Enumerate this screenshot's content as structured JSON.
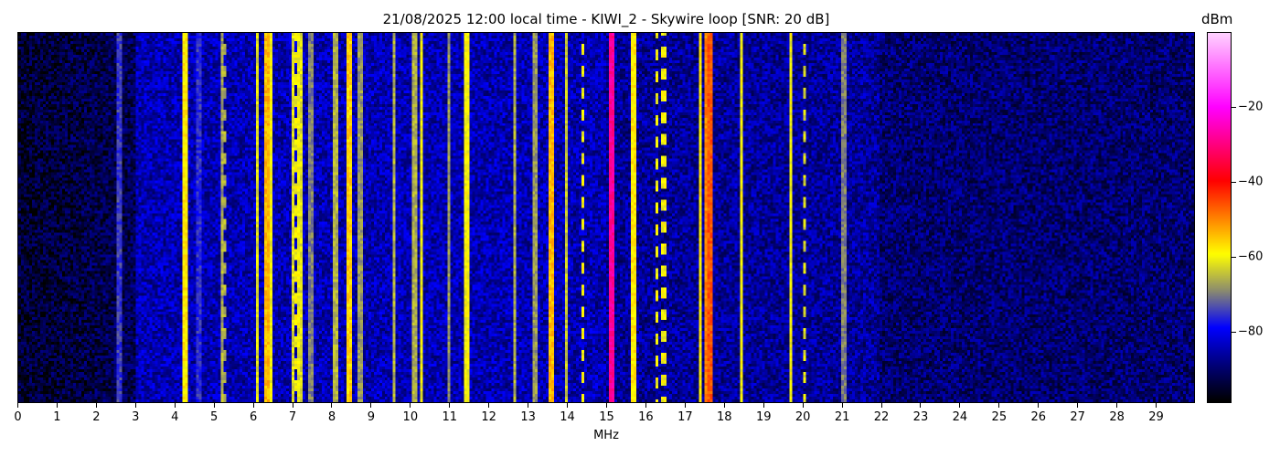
{
  "chart_data": {
    "type": "heatmap",
    "title": "21/08/2025 12:00 local time - KIWI_2 - Skywire loop [SNR: 20 dB]",
    "xlabel": "MHz",
    "colorbar_label": "dBm",
    "xlim": [
      0,
      30
    ],
    "x_ticks": [
      "0",
      "1",
      "2",
      "3",
      "4",
      "5",
      "6",
      "7",
      "8",
      "9",
      "10",
      "11",
      "12",
      "13",
      "14",
      "15",
      "16",
      "17",
      "18",
      "19",
      "20",
      "21",
      "22",
      "23",
      "24",
      "25",
      "26",
      "27",
      "28",
      "29"
    ],
    "color_range": [
      -99,
      0
    ],
    "colorbar_ticks": [
      -20,
      -40,
      -60,
      -80
    ],
    "colorbar_tick_labels": [
      "−20",
      "−40",
      "−60",
      "−80"
    ],
    "colormap": [
      "#000000",
      "#00007a",
      "#0000ff",
      "#8a8a70",
      "#ffff00",
      "#ff8000",
      "#ff0000",
      "#ff00ff",
      "#ffd0ff"
    ],
    "noise_floor_dbm": {
      "0-3 MHz": -95,
      "3-15 MHz": -85,
      "15-22 MHz": -87,
      "22-30 MHz": -90
    },
    "signals": [
      {
        "mhz": 2.6,
        "dbm": -75,
        "mode": "continuous"
      },
      {
        "mhz": 4.25,
        "dbm": -58,
        "mode": "continuous"
      },
      {
        "mhz": 4.6,
        "dbm": -76,
        "mode": "continuous"
      },
      {
        "mhz": 5.2,
        "dbm": -68,
        "mode": "continuous"
      },
      {
        "mhz": 5.25,
        "dbm": -66,
        "mode": "intermittent"
      },
      {
        "mhz": 6.1,
        "dbm": -62,
        "mode": "continuous"
      },
      {
        "mhz": 6.35,
        "dbm": -54,
        "mode": "continuous"
      },
      {
        "mhz": 6.45,
        "dbm": -60,
        "mode": "continuous"
      },
      {
        "mhz": 7.0,
        "dbm": -62,
        "mode": "continuous"
      },
      {
        "mhz": 7.1,
        "dbm": -60,
        "mode": "intermittent"
      },
      {
        "mhz": 7.2,
        "dbm": -62,
        "mode": "continuous"
      },
      {
        "mhz": 7.45,
        "dbm": -70,
        "mode": "continuous"
      },
      {
        "mhz": 8.1,
        "dbm": -66,
        "mode": "continuous"
      },
      {
        "mhz": 8.4,
        "dbm": -58,
        "mode": "continuous"
      },
      {
        "mhz": 8.45,
        "dbm": -56,
        "mode": "continuous"
      },
      {
        "mhz": 8.7,
        "dbm": -68,
        "mode": "continuous"
      },
      {
        "mhz": 9.6,
        "dbm": -66,
        "mode": "continuous"
      },
      {
        "mhz": 10.1,
        "dbm": -66,
        "mode": "continuous"
      },
      {
        "mhz": 10.3,
        "dbm": -60,
        "mode": "continuous"
      },
      {
        "mhz": 11.0,
        "dbm": -68,
        "mode": "continuous"
      },
      {
        "mhz": 11.45,
        "dbm": -60,
        "mode": "continuous"
      },
      {
        "mhz": 12.65,
        "dbm": -66,
        "mode": "continuous"
      },
      {
        "mhz": 13.2,
        "dbm": -68,
        "mode": "continuous"
      },
      {
        "mhz": 13.6,
        "dbm": -54,
        "mode": "continuous"
      },
      {
        "mhz": 14.0,
        "dbm": -64,
        "mode": "continuous"
      },
      {
        "mhz": 14.4,
        "dbm": -60,
        "mode": "intermittent"
      },
      {
        "mhz": 15.1,
        "dbm": -40,
        "mode": "continuous"
      },
      {
        "mhz": 15.15,
        "dbm": -28,
        "mode": "continuous"
      },
      {
        "mhz": 15.7,
        "dbm": -58,
        "mode": "continuous"
      },
      {
        "mhz": 16.3,
        "dbm": -60,
        "mode": "intermittent"
      },
      {
        "mhz": 16.45,
        "dbm": -60,
        "mode": "intermittent"
      },
      {
        "mhz": 17.4,
        "dbm": -58,
        "mode": "continuous"
      },
      {
        "mhz": 17.55,
        "dbm": -50,
        "mode": "continuous"
      },
      {
        "mhz": 17.65,
        "dbm": -46,
        "mode": "continuous"
      },
      {
        "mhz": 18.45,
        "dbm": -60,
        "mode": "continuous"
      },
      {
        "mhz": 19.7,
        "dbm": -60,
        "mode": "continuous"
      },
      {
        "mhz": 20.05,
        "dbm": -62,
        "mode": "intermittent"
      },
      {
        "mhz": 21.05,
        "dbm": -70,
        "mode": "continuous"
      }
    ]
  }
}
